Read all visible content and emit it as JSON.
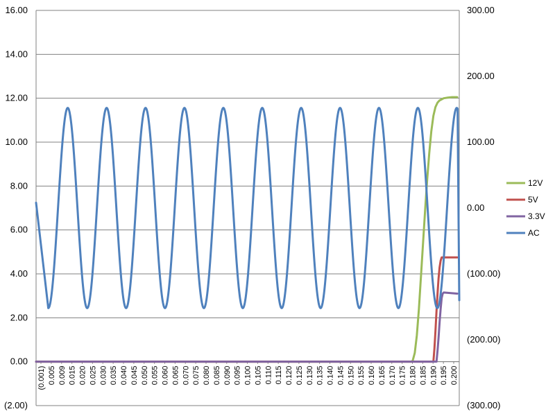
{
  "chart_data": {
    "type": "line",
    "title": "",
    "xlabel": "",
    "ylabel": "",
    "grid": "horizontal major gridlines",
    "legend_position": "right",
    "x_tick_labels": [
      "(0.001)",
      "0.005",
      "0.009",
      "0.015",
      "0.020",
      "0.025",
      "0.030",
      "0.035",
      "0.040",
      "0.045",
      "0.050",
      "0.055",
      "0.060",
      "0.065",
      "0.070",
      "0.075",
      "0.080",
      "0.085",
      "0.090",
      "0.095",
      "0.100",
      "0.105",
      "0.110",
      "0.115",
      "0.120",
      "0.125",
      "0.130",
      "0.135",
      "0.140",
      "0.145",
      "0.150",
      "0.155",
      "0.160",
      "0.165",
      "0.170",
      "0.175",
      "0.180",
      "0.185",
      "0.190",
      "0.195",
      "0.200"
    ],
    "x_range": [
      -0.001,
      0.2035
    ],
    "y_left": {
      "ylim": [
        -2,
        16
      ],
      "tick_labels": [
        "(2.00)",
        "0.00",
        "2.00",
        "4.00",
        "6.00",
        "8.00",
        "10.00",
        "12.00",
        "14.00",
        "16.00"
      ],
      "tick_values": [
        -2,
        0,
        2,
        4,
        6,
        8,
        10,
        12,
        14,
        16
      ]
    },
    "y_right": {
      "ylim": [
        -300,
        300
      ],
      "tick_labels": [
        "(300.00)",
        "(200.00)",
        "(100.00)",
        "0.00",
        "100.00",
        "200.00",
        "300.00"
      ],
      "tick_values": [
        -300,
        -200,
        -100,
        0,
        100,
        200,
        300
      ]
    },
    "series": [
      {
        "name": "12V",
        "axis": "left",
        "color": "#9BBB59",
        "x": [
          -0.001,
          0.1805,
          0.181,
          0.182,
          0.183,
          0.184,
          0.185,
          0.186,
          0.187,
          0.188,
          0.189,
          0.19,
          0.191,
          0.192,
          0.193,
          0.194,
          0.195,
          0.196,
          0.198,
          0.2,
          0.2025
        ],
        "values": [
          0,
          0,
          0.05,
          0.4,
          1.2,
          2.4,
          3.9,
          5.4,
          6.9,
          8.3,
          9.5,
          10.5,
          11.2,
          11.6,
          11.8,
          11.9,
          11.95,
          12.0,
          12.03,
          12.05,
          12.05
        ]
      },
      {
        "name": "5V",
        "axis": "left",
        "color": "#C0504D",
        "x": [
          -0.001,
          0.191,
          0.1915,
          0.192,
          0.1925,
          0.193,
          0.1935,
          0.194,
          0.1945,
          0.195,
          0.198,
          0.2025
        ],
        "values": [
          0,
          0,
          0.6,
          1.4,
          2.3,
          3.1,
          3.8,
          4.3,
          4.6,
          4.75,
          4.75,
          4.75
        ]
      },
      {
        "name": "3.3V",
        "axis": "left",
        "color": "#8064A2",
        "x": [
          -0.001,
          0.1925,
          0.193,
          0.1935,
          0.194,
          0.1945,
          0.195,
          0.1955,
          0.196,
          0.2025
        ],
        "values": [
          0,
          0,
          0.5,
          1.1,
          1.8,
          2.4,
          2.9,
          3.1,
          3.15,
          3.1
        ]
      },
      {
        "name": "AC",
        "axis": "right",
        "color": "#4F81BD",
        "amplitude": 152,
        "period": 0.0188,
        "peak_times": [
          0.0143,
          0.0331,
          0.0519,
          0.0707,
          0.0895,
          0.1083,
          0.1271,
          0.1459,
          0.1647,
          0.1835,
          0.2023
        ],
        "trough_times": [
          0.0049,
          0.0237,
          0.0425,
          0.0613,
          0.0801,
          0.0989,
          0.1177,
          0.1365,
          0.1553,
          0.1741,
          0.1929
        ],
        "start_value": 8,
        "end_value": -140
      }
    ]
  }
}
